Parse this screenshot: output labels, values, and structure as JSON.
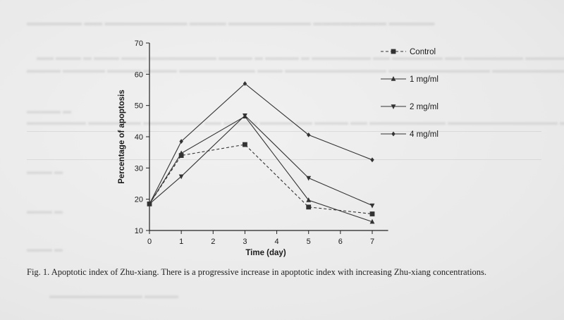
{
  "chart_data": {
    "type": "line",
    "xlabel": "Time (day)",
    "ylabel": "Percentage of apoptosis",
    "xlim": [
      0,
      7.5
    ],
    "ylim": [
      10,
      70
    ],
    "xticks": [
      "0",
      "1",
      "2",
      "3",
      "4",
      "5",
      "6",
      "7"
    ],
    "yticks": [
      "10",
      "20",
      "30",
      "40",
      "50",
      "60",
      "70"
    ],
    "legend_position": "right",
    "grid": false,
    "series": [
      {
        "name": "Control",
        "marker": "square",
        "dashed": true,
        "color": "#333333",
        "points": [
          {
            "x": 0,
            "y": 18.5
          },
          {
            "x": 1,
            "y": 34.0
          },
          {
            "x": 3,
            "y": 37.5
          },
          {
            "x": 5,
            "y": 17.5
          },
          {
            "x": 7,
            "y": 15.3
          }
        ]
      },
      {
        "name": "1 mg/ml",
        "marker": "triangle-up",
        "dashed": false,
        "color": "#333333",
        "points": [
          {
            "x": 0,
            "y": 18.5
          },
          {
            "x": 1,
            "y": 34.7
          },
          {
            "x": 3,
            "y": 46.5
          },
          {
            "x": 5,
            "y": 19.7
          },
          {
            "x": 7,
            "y": 12.8
          }
        ]
      },
      {
        "name": "2 mg/ml",
        "marker": "triangle-down",
        "dashed": false,
        "color": "#333333",
        "points": [
          {
            "x": 0,
            "y": 18.5
          },
          {
            "x": 1,
            "y": 27.3
          },
          {
            "x": 3,
            "y": 46.8
          },
          {
            "x": 5,
            "y": 26.8
          },
          {
            "x": 7,
            "y": 18.0
          }
        ]
      },
      {
        "name": "4 mg/ml",
        "marker": "diamond",
        "dashed": false,
        "color": "#333333",
        "points": [
          {
            "x": 0,
            "y": 18.5
          },
          {
            "x": 1,
            "y": 38.5
          },
          {
            "x": 3,
            "y": 57.0
          },
          {
            "x": 5,
            "y": 40.6
          },
          {
            "x": 7,
            "y": 32.6
          }
        ]
      }
    ]
  },
  "caption": {
    "text": "Fig. 1. Apoptotic index of Zhu-xiang. There is a progressive increase in apoptotic index with increasing Zhu-xiang concentrations."
  }
}
